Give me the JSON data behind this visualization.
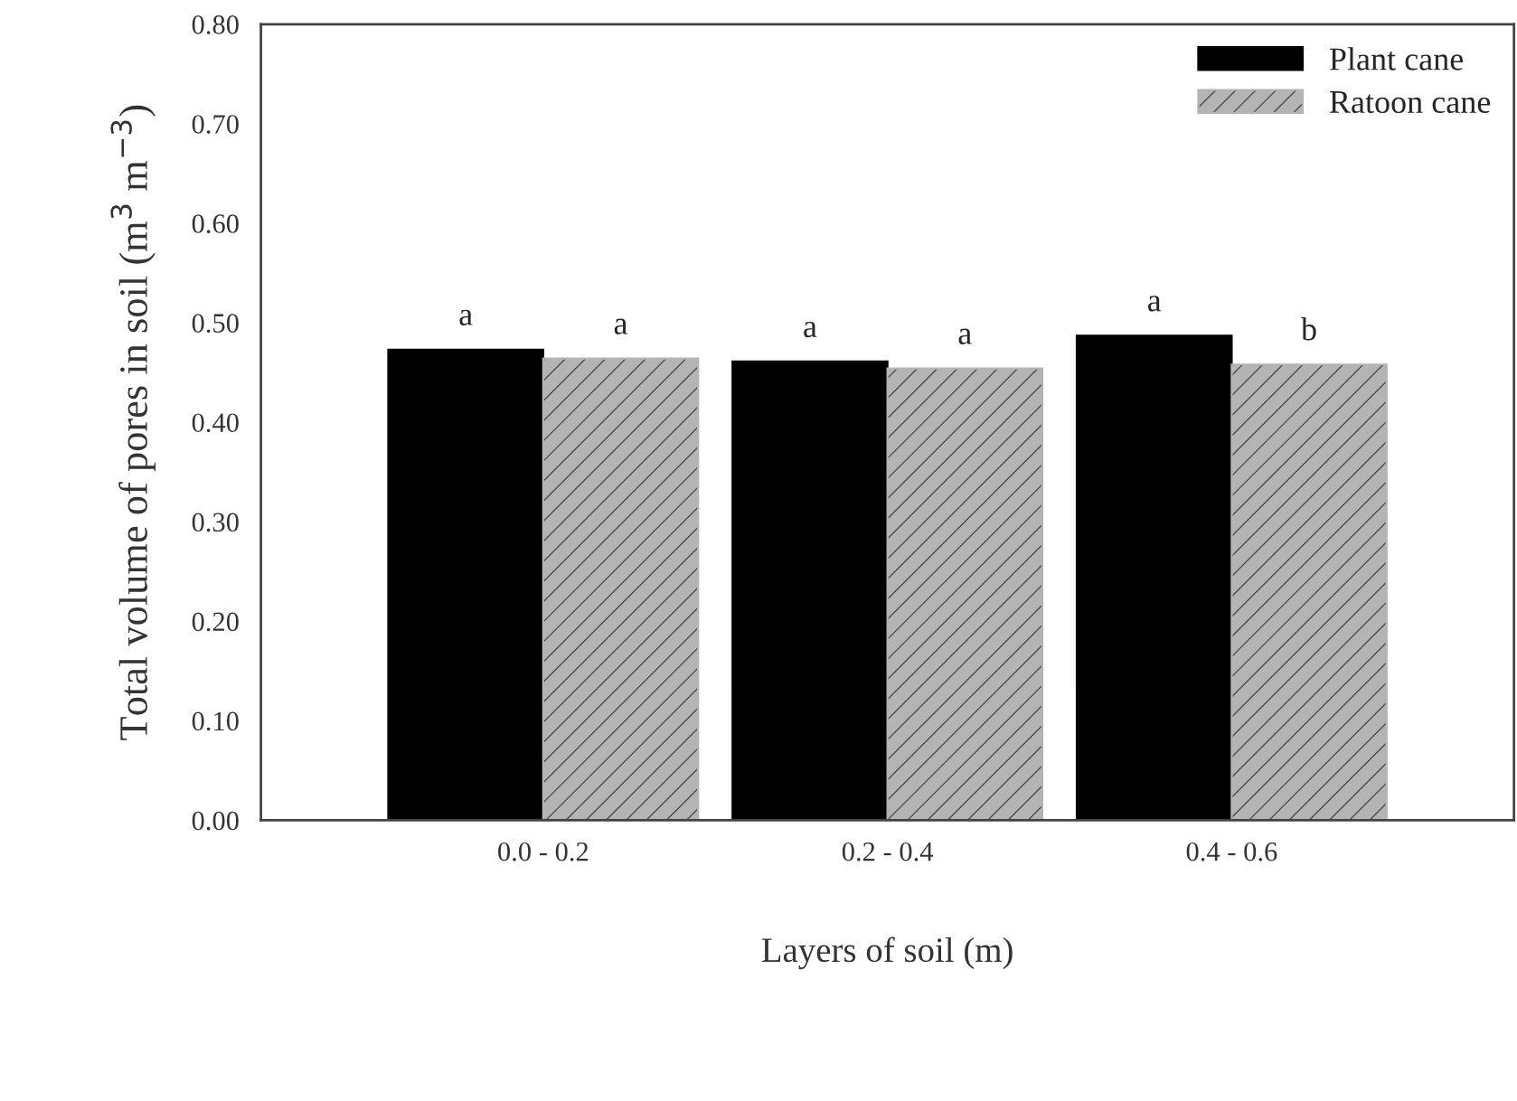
{
  "chart_data": {
    "type": "bar",
    "xlabel": "Layers of soil (m)",
    "ylabel": "Total volume of pores in soil (m$^{3}$ m$^{−3}$)",
    "categories": [
      "0.0 - 0.2",
      "0.2 - 0.4",
      "0.4 - 0.6"
    ],
    "series": [
      {
        "name": "Plant cane",
        "color": "#000000",
        "values": [
          0.473,
          0.461,
          0.487
        ]
      },
      {
        "name": "Ratoon cane",
        "color": "#b4b4b4",
        "values": [
          0.464,
          0.454,
          0.458
        ]
      }
    ],
    "ylim": [
      0,
      0.8
    ],
    "yticks": [
      {
        "value": 0,
        "label": "0.00"
      },
      {
        "value": 0.1,
        "label": "0.10"
      },
      {
        "value": 0.2,
        "label": "0.20"
      },
      {
        "value": 0.3,
        "label": "0.30"
      },
      {
        "value": 0.4,
        "label": "0.40"
      },
      {
        "value": 0.5,
        "label": "0.50"
      },
      {
        "value": 0.6,
        "label": "0.60"
      },
      {
        "value": 0.7,
        "label": "0.70"
      },
      {
        "value": 0.8,
        "label": "0.80"
      }
    ],
    "annotations": [
      {
        "text": "a",
        "x": "0.0 - 0.2",
        "y": 0.473
      },
      {
        "text": "a",
        "x": "0.2 - 0.4",
        "y": 0.461
      },
      {
        "text": "a",
        "x": "0.4 - 0.6",
        "y": 0.487
      },
      {
        "text": "a",
        "x": "0.0 - 0.2",
        "y": 0.464
      },
      {
        "text": "a",
        "x": "0.2 - 0.4",
        "y": 0.454
      },
      {
        "text": "b",
        "x": "0.4 - 0.6",
        "y": 0.458
      }
    ],
    "legend": "top right",
    "grid": false
  }
}
